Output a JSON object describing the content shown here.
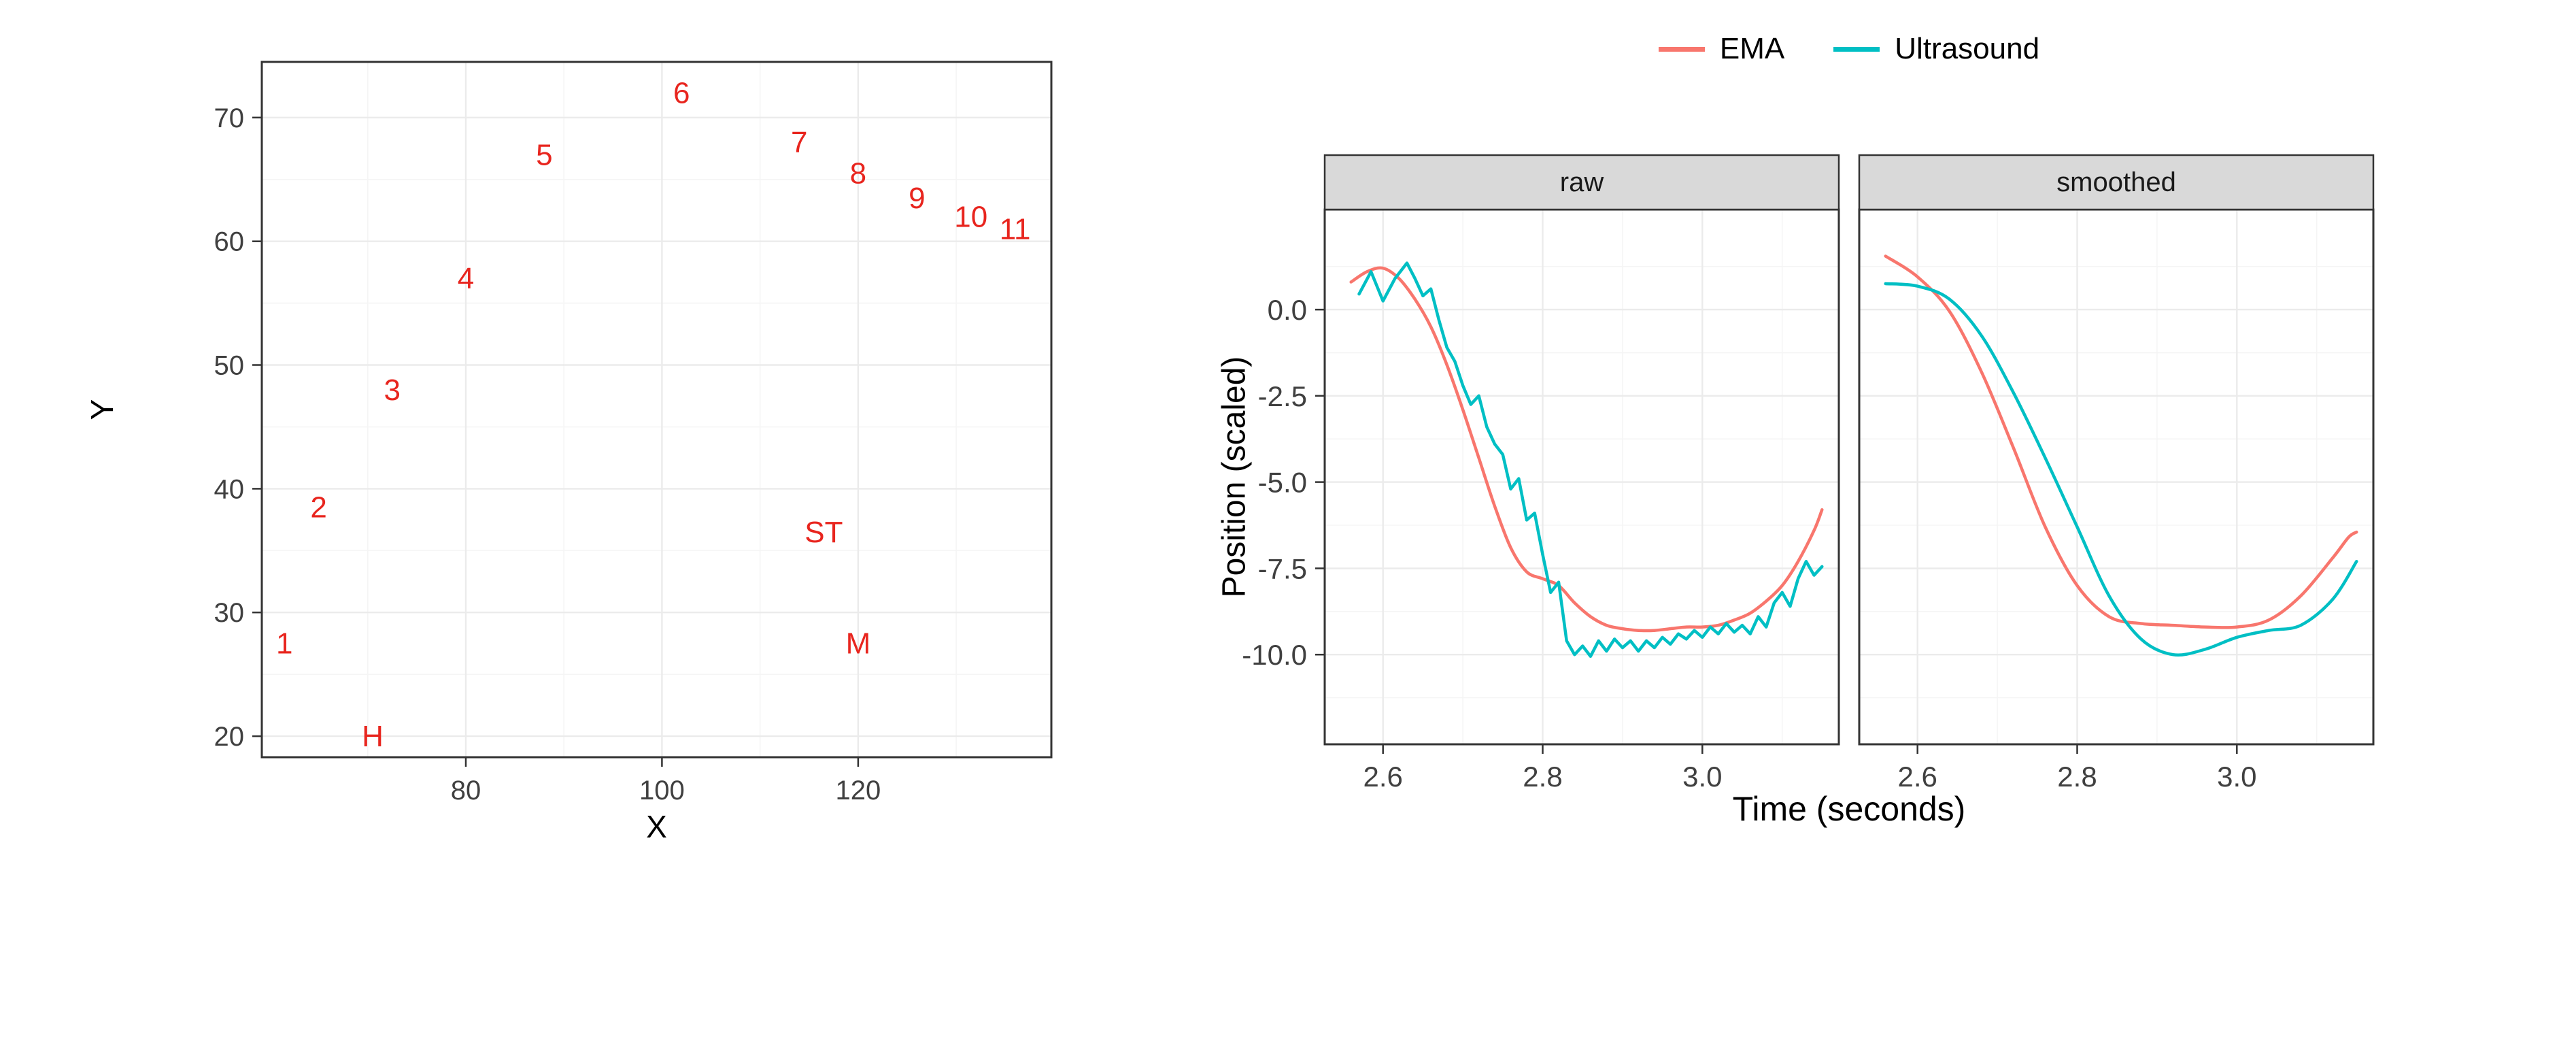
{
  "background": "#ffffff",
  "chart_data": [
    {
      "type": "scatter",
      "title": "",
      "xlabel": "X",
      "ylabel": "Y",
      "xlim": [
        59.2,
        139.7
      ],
      "ylim": [
        18.3,
        74.5
      ],
      "xticks": [
        80,
        100,
        120
      ],
      "xtick_labels": [
        "80",
        "100",
        "120"
      ],
      "xticks_minor": [
        70,
        90,
        110,
        130
      ],
      "yticks": [
        20,
        30,
        40,
        50,
        60,
        70
      ],
      "ytick_labels": [
        "20",
        "30",
        "40",
        "50",
        "60",
        "70"
      ],
      "yticks_minor": [
        25,
        35,
        45,
        55,
        65
      ],
      "grid": true,
      "style": {
        "label_color": "#e8251e",
        "grid_major": "#ebebeb",
        "grid_minor": "#f5f5f5",
        "panel_border": "#333333",
        "tick_color": "#333333",
        "tick_label_color": "#404040",
        "panel_bg": "#ffffff"
      },
      "points": [
        {
          "label": "1",
          "x": 61.5,
          "y": 27.5
        },
        {
          "label": "2",
          "x": 65,
          "y": 38.5
        },
        {
          "label": "3",
          "x": 72.5,
          "y": 48
        },
        {
          "label": "4",
          "x": 80,
          "y": 57
        },
        {
          "label": "5",
          "x": 88,
          "y": 67
        },
        {
          "label": "6",
          "x": 102,
          "y": 72
        },
        {
          "label": "7",
          "x": 114,
          "y": 68
        },
        {
          "label": "8",
          "x": 120,
          "y": 65.5
        },
        {
          "label": "9",
          "x": 126,
          "y": 63.5
        },
        {
          "label": "10",
          "x": 131.5,
          "y": 62
        },
        {
          "label": "11",
          "x": 136,
          "y": 61
        },
        {
          "label": "H",
          "x": 70.5,
          "y": 20
        },
        {
          "label": "ST",
          "x": 116.5,
          "y": 36.5
        },
        {
          "label": "M",
          "x": 120,
          "y": 27.5
        }
      ]
    },
    {
      "type": "line",
      "title": "",
      "facets": [
        "raw",
        "smoothed"
      ],
      "xlabel": "Time (seconds)",
      "ylabel": "Position (scaled)",
      "xlim": [
        2.527,
        3.171
      ],
      "ylim": [
        -12.6,
        2.9
      ],
      "xticks": [
        2.6,
        2.8,
        3.0
      ],
      "xtick_labels": [
        "2.6",
        "2.8",
        "3.0"
      ],
      "xticks_minor": [
        2.7,
        2.9,
        3.1
      ],
      "yticks": [
        0,
        -2.5,
        -5,
        -7.5,
        -10
      ],
      "ytick_labels": [
        "0.0",
        "-2.5",
        "-5.0",
        "-7.5",
        "-10.0"
      ],
      "yticks_minor": [
        1.25,
        -1.25,
        -3.75,
        -6.25,
        -8.75,
        -11.25
      ],
      "grid": true,
      "legend": {
        "position": "top",
        "entries": [
          {
            "name": "EMA",
            "color": "#F8766D"
          },
          {
            "name": "Ultrasound",
            "color": "#00BFC4"
          }
        ]
      },
      "style": {
        "strip_fill": "#d9d9d9",
        "strip_text_color": "#1a1a1a",
        "grid_major": "#ebebeb",
        "grid_minor": "#f5f5f5",
        "panel_border": "#333333",
        "tick_color": "#333333",
        "tick_label_color": "#404040",
        "panel_bg": "#ffffff"
      },
      "series": [
        {
          "name": "EMA",
          "facet": "raw",
          "color": "#F8766D",
          "smooth": true,
          "points": [
            [
              2.56,
              0.8
            ],
            [
              2.58,
              1.1
            ],
            [
              2.6,
              1.2
            ],
            [
              2.62,
              0.9
            ],
            [
              2.64,
              0.3
            ],
            [
              2.66,
              -0.5
            ],
            [
              2.68,
              -1.6
            ],
            [
              2.7,
              -2.9
            ],
            [
              2.72,
              -4.3
            ],
            [
              2.74,
              -5.7
            ],
            [
              2.76,
              -6.9
            ],
            [
              2.78,
              -7.6
            ],
            [
              2.8,
              -7.8
            ],
            [
              2.82,
              -8.0
            ],
            [
              2.84,
              -8.5
            ],
            [
              2.86,
              -8.9
            ],
            [
              2.88,
              -9.15
            ],
            [
              2.9,
              -9.25
            ],
            [
              2.92,
              -9.3
            ],
            [
              2.94,
              -9.3
            ],
            [
              2.96,
              -9.25
            ],
            [
              2.98,
              -9.2
            ],
            [
              3.0,
              -9.2
            ],
            [
              3.02,
              -9.15
            ],
            [
              3.04,
              -9.0
            ],
            [
              3.06,
              -8.8
            ],
            [
              3.08,
              -8.45
            ],
            [
              3.1,
              -8.0
            ],
            [
              3.12,
              -7.3
            ],
            [
              3.14,
              -6.4
            ],
            [
              3.15,
              -5.8
            ]
          ]
        },
        {
          "name": "Ultrasound",
          "facet": "raw",
          "color": "#00BFC4",
          "smooth": false,
          "points": [
            [
              2.57,
              0.45
            ],
            [
              2.585,
              1.1
            ],
            [
              2.6,
              0.25
            ],
            [
              2.615,
              0.9
            ],
            [
              2.63,
              1.35
            ],
            [
              2.64,
              0.9
            ],
            [
              2.65,
              0.4
            ],
            [
              2.66,
              0.6
            ],
            [
              2.67,
              -0.3
            ],
            [
              2.68,
              -1.1
            ],
            [
              2.69,
              -1.5
            ],
            [
              2.7,
              -2.2
            ],
            [
              2.71,
              -2.75
            ],
            [
              2.72,
              -2.5
            ],
            [
              2.73,
              -3.4
            ],
            [
              2.74,
              -3.9
            ],
            [
              2.75,
              -4.2
            ],
            [
              2.76,
              -5.2
            ],
            [
              2.77,
              -4.9
            ],
            [
              2.78,
              -6.1
            ],
            [
              2.79,
              -5.9
            ],
            [
              2.8,
              -7.1
            ],
            [
              2.81,
              -8.2
            ],
            [
              2.82,
              -7.9
            ],
            [
              2.83,
              -9.6
            ],
            [
              2.84,
              -10.0
            ],
            [
              2.85,
              -9.75
            ],
            [
              2.86,
              -10.05
            ],
            [
              2.87,
              -9.6
            ],
            [
              2.88,
              -9.9
            ],
            [
              2.89,
              -9.55
            ],
            [
              2.9,
              -9.8
            ],
            [
              2.91,
              -9.6
            ],
            [
              2.92,
              -9.9
            ],
            [
              2.93,
              -9.6
            ],
            [
              2.94,
              -9.8
            ],
            [
              2.95,
              -9.5
            ],
            [
              2.96,
              -9.7
            ],
            [
              2.97,
              -9.4
            ],
            [
              2.98,
              -9.55
            ],
            [
              2.99,
              -9.3
            ],
            [
              3.0,
              -9.5
            ],
            [
              3.01,
              -9.2
            ],
            [
              3.02,
              -9.4
            ],
            [
              3.03,
              -9.1
            ],
            [
              3.04,
              -9.35
            ],
            [
              3.05,
              -9.15
            ],
            [
              3.06,
              -9.4
            ],
            [
              3.07,
              -8.9
            ],
            [
              3.08,
              -9.2
            ],
            [
              3.09,
              -8.5
            ],
            [
              3.1,
              -8.2
            ],
            [
              3.11,
              -8.6
            ],
            [
              3.12,
              -7.8
            ],
            [
              3.13,
              -7.3
            ],
            [
              3.14,
              -7.7
            ],
            [
              3.15,
              -7.45
            ]
          ]
        },
        {
          "name": "EMA",
          "facet": "smoothed",
          "color": "#F8766D",
          "smooth": true,
          "points": [
            [
              2.56,
              1.55
            ],
            [
              2.6,
              0.95
            ],
            [
              2.64,
              -0.05
            ],
            [
              2.68,
              -1.8
            ],
            [
              2.72,
              -4.0
            ],
            [
              2.76,
              -6.3
            ],
            [
              2.8,
              -8.0
            ],
            [
              2.84,
              -8.9
            ],
            [
              2.88,
              -9.1
            ],
            [
              2.92,
              -9.15
            ],
            [
              2.96,
              -9.2
            ],
            [
              3.0,
              -9.2
            ],
            [
              3.04,
              -9.0
            ],
            [
              3.08,
              -8.3
            ],
            [
              3.12,
              -7.2
            ],
            [
              3.14,
              -6.6
            ],
            [
              3.15,
              -6.45
            ]
          ]
        },
        {
          "name": "Ultrasound",
          "facet": "smoothed",
          "color": "#00BFC4",
          "smooth": true,
          "points": [
            [
              2.56,
              0.75
            ],
            [
              2.6,
              0.68
            ],
            [
              2.64,
              0.3
            ],
            [
              2.68,
              -0.75
            ],
            [
              2.72,
              -2.4
            ],
            [
              2.76,
              -4.3
            ],
            [
              2.8,
              -6.3
            ],
            [
              2.84,
              -8.3
            ],
            [
              2.88,
              -9.55
            ],
            [
              2.92,
              -10.0
            ],
            [
              2.96,
              -9.85
            ],
            [
              3.0,
              -9.5
            ],
            [
              3.04,
              -9.3
            ],
            [
              3.08,
              -9.15
            ],
            [
              3.12,
              -8.4
            ],
            [
              3.15,
              -7.3
            ]
          ]
        }
      ]
    }
  ]
}
